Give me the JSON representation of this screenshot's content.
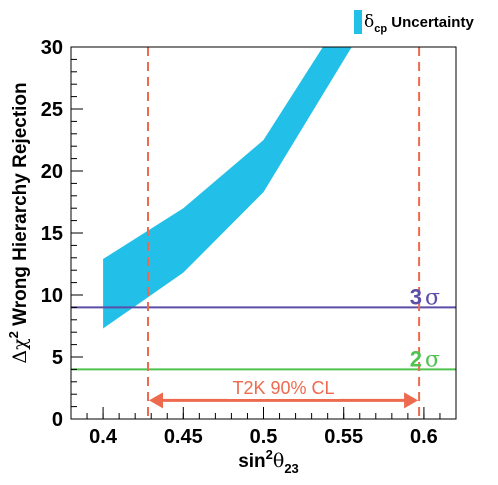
{
  "chart_data": {
    "type": "area",
    "xlabel_main": "sin",
    "xlabel_sup": "2",
    "xlabel_theta": "θ",
    "xlabel_sub": "23",
    "ylabel_delta": "Δχ",
    "ylabel_sup": "2",
    "ylabel_rest": " Wrong Hierarchy Rejection",
    "xlim": [
      0.38,
      0.62
    ],
    "ylim": [
      0,
      30
    ],
    "x_ticks": [
      0.4,
      0.45,
      0.5,
      0.55,
      0.6
    ],
    "x_tick_labels": [
      "0.4",
      "0.45",
      "0.5",
      "0.55",
      "0.6"
    ],
    "y_ticks": [
      0,
      5,
      10,
      15,
      20,
      25,
      30
    ],
    "y_tick_labels": [
      "0",
      "5",
      "10",
      "15",
      "20",
      "25",
      "30"
    ],
    "band": {
      "color": "#22c0e8",
      "x": [
        0.4,
        0.45,
        0.5,
        0.555
      ],
      "lower": [
        7.3,
        11.8,
        18.3,
        30
      ],
      "upper": [
        12.9,
        17.0,
        22.5,
        30
      ],
      "upper_x": [
        0.4,
        0.45,
        0.5,
        0.537
      ]
    },
    "legend": {
      "symbol": "δ",
      "symbol_sub": "cp",
      "label": " Uncertainty",
      "placement": "top-right"
    },
    "hlines": [
      {
        "y": 9,
        "color": "#5a4ea6",
        "label_num": "3",
        "label_sym": "σ"
      },
      {
        "y": 4,
        "color": "#4fc24f",
        "label_num": "2",
        "label_sym": "σ"
      }
    ],
    "vlines": [
      {
        "x": 0.428,
        "color": "#ee6a4e"
      },
      {
        "x": 0.597,
        "color": "#ee6a4e"
      }
    ],
    "cl_arrow": {
      "from": 0.428,
      "to": 0.597,
      "y": 1.5,
      "label": "T2K 90% CL",
      "color": "#ee6a4e"
    }
  }
}
